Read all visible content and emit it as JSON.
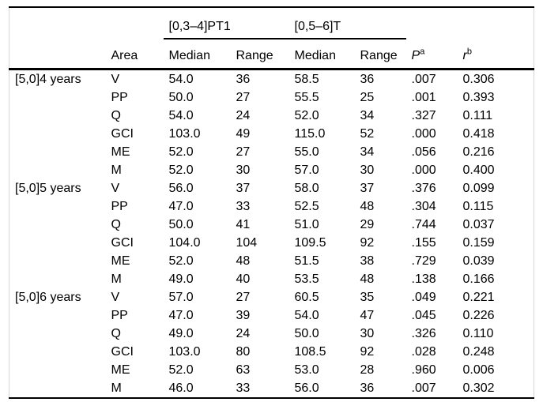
{
  "table": {
    "group_headers": [
      {
        "label": "[0,3–4]PT1"
      },
      {
        "label": "[0,5–6]T"
      }
    ],
    "columns": {
      "area": "Area",
      "median1": "Median",
      "range1": "Range",
      "median2": "Median",
      "range2": "Range"
    },
    "p_header": {
      "base": "P",
      "sup": "a"
    },
    "r_header": {
      "base": "r",
      "sup": "b"
    },
    "rows": [
      {
        "group": "[5,0]4 years",
        "area": "V",
        "median1": "54.0",
        "range1": "36",
        "median2": "58.5",
        "range2": "36",
        "p": ".007",
        "p_bold": true,
        "r": "0.306"
      },
      {
        "group": "",
        "area": "PP",
        "median1": "50.0",
        "range1": "27",
        "median2": "55.5",
        "range2": "25",
        "p": ".001",
        "p_bold": true,
        "r": "0.393"
      },
      {
        "group": "",
        "area": "Q",
        "median1": "54.0",
        "range1": "24",
        "median2": "52.0",
        "range2": "34",
        "p": ".327",
        "p_bold": false,
        "r": "0.111"
      },
      {
        "group": "",
        "area": "GCI",
        "median1": "103.0",
        "range1": "49",
        "median2": "115.0",
        "range2": "52",
        "p": ".000",
        "p_bold": true,
        "r": "0.418"
      },
      {
        "group": "",
        "area": "ME",
        "median1": "52.0",
        "range1": "27",
        "median2": "55.0",
        "range2": "34",
        "p": ".056",
        "p_bold": false,
        "r": "0.216"
      },
      {
        "group": "",
        "area": "M",
        "median1": "52.0",
        "range1": "30",
        "median2": "57.0",
        "range2": "30",
        "p": ".000",
        "p_bold": true,
        "r": "0.400"
      },
      {
        "group": "[5,0]5 years",
        "area": "V",
        "median1": "56.0",
        "range1": "37",
        "median2": "58.0",
        "range2": "37",
        "p": ".376",
        "p_bold": false,
        "r": "0.099"
      },
      {
        "group": "",
        "area": "PP",
        "median1": "47.0",
        "range1": "33",
        "median2": "52.5",
        "range2": "48",
        "p": ".304",
        "p_bold": false,
        "r": "0.115"
      },
      {
        "group": "",
        "area": "Q",
        "median1": "50.0",
        "range1": "41",
        "median2": "51.0",
        "range2": "29",
        "p": ".744",
        "p_bold": false,
        "r": "0.037"
      },
      {
        "group": "",
        "area": "GCI",
        "median1": "104.0",
        "range1": "104",
        "median2": "109.5",
        "range2": "92",
        "p": ".155",
        "p_bold": false,
        "r": "0.159"
      },
      {
        "group": "",
        "area": "ME",
        "median1": "52.0",
        "range1": "48",
        "median2": "51.5",
        "range2": "38",
        "p": ".729",
        "p_bold": false,
        "r": "0.039"
      },
      {
        "group": "",
        "area": "M",
        "median1": "49.0",
        "range1": "40",
        "median2": "53.5",
        "range2": "48",
        "p": ".138",
        "p_bold": false,
        "r": "0.166"
      },
      {
        "group": "[5,0]6 years",
        "area": "V",
        "median1": "57.0",
        "range1": "27",
        "median2": "60.5",
        "range2": "35",
        "p": ".049",
        "p_bold": true,
        "r": "0.221"
      },
      {
        "group": "",
        "area": "PP",
        "median1": "47.0",
        "range1": "39",
        "median2": "54.0",
        "range2": "47",
        "p": ".045",
        "p_bold": true,
        "r": "0.226"
      },
      {
        "group": "",
        "area": "Q",
        "median1": "49.0",
        "range1": "24",
        "median2": "50.0",
        "range2": "30",
        "p": ".326",
        "p_bold": false,
        "r": "0.110"
      },
      {
        "group": "",
        "area": "GCI",
        "median1": "103.0",
        "range1": "80",
        "median2": "108.5",
        "range2": "92",
        "p": ".028",
        "p_bold": true,
        "r": "0.248"
      },
      {
        "group": "",
        "area": "ME",
        "median1": "52.0",
        "range1": "63",
        "median2": "53.0",
        "range2": "28",
        "p": ".960",
        "p_bold": false,
        "r": "0.006"
      },
      {
        "group": "",
        "area": "M",
        "median1": "46.0",
        "range1": "33",
        "median2": "56.0",
        "range2": "36",
        "p": ".007",
        "p_bold": true,
        "r": "0.302"
      }
    ]
  }
}
